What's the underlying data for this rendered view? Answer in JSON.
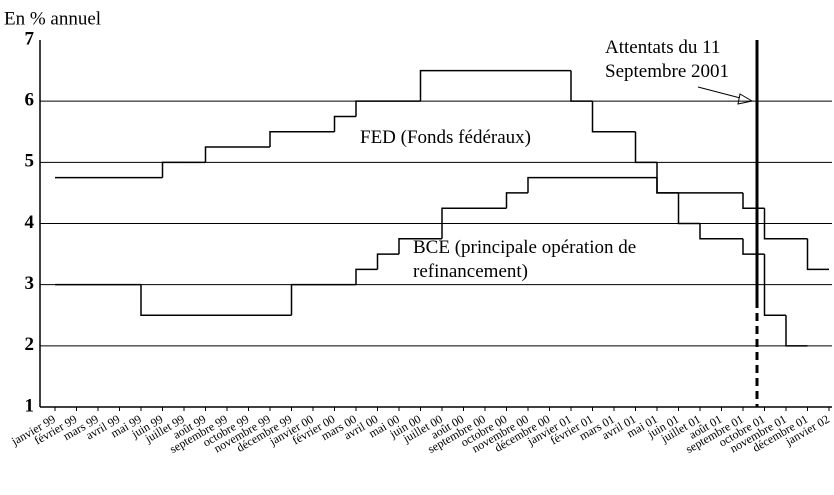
{
  "chart_data": {
    "type": "step",
    "y_axis_label": "En % annuel",
    "categories": [
      "janvier 99",
      "février 99",
      "mars 99",
      "avril 99",
      "mai 99",
      "juin 99",
      "juillet 99",
      "août 99",
      "septembre 99",
      "octobre 99",
      "novembre 99",
      "décembre 99",
      "janvier 00",
      "février 00",
      "mars 00",
      "avril 00",
      "mai 00",
      "juin 00",
      "juillet 00",
      "août 00",
      "septembre 00",
      "octobre 00",
      "novembre 00",
      "décembre 00",
      "janvier 01",
      "février 01",
      "mars 01",
      "avril 01",
      "mai 01",
      "juin 01",
      "juillet 01",
      "août 01",
      "septembre 01",
      "octobre 01",
      "novembre 01",
      "décembre 01",
      "janvier 02"
    ],
    "series": [
      {
        "name": "FED (Fonds fédéraux)",
        "color": "#000000",
        "values": [
          4.75,
          4.75,
          4.75,
          4.75,
          4.75,
          5.0,
          5.0,
          5.25,
          5.25,
          5.25,
          5.5,
          5.5,
          5.5,
          5.75,
          6.0,
          6.0,
          6.0,
          6.5,
          6.5,
          6.5,
          6.5,
          6.5,
          6.5,
          6.5,
          6.0,
          5.5,
          5.5,
          5.0,
          4.5,
          4.0,
          3.75,
          3.75,
          3.5,
          2.5,
          2.0,
          null,
          null
        ]
      },
      {
        "name": "BCE (principale opération de refinancement)",
        "color": "#000000",
        "values": [
          3.0,
          3.0,
          3.0,
          3.0,
          2.5,
          2.5,
          2.5,
          2.5,
          2.5,
          2.5,
          2.5,
          3.0,
          3.0,
          3.0,
          3.25,
          3.5,
          3.75,
          3.75,
          4.25,
          4.25,
          4.25,
          4.5,
          4.75,
          4.75,
          4.75,
          4.75,
          4.75,
          4.75,
          4.5,
          4.5,
          4.5,
          4.5,
          4.25,
          3.75,
          3.75,
          3.25,
          null
        ]
      }
    ],
    "annotation": "Attentats du 11 Septembre 2001",
    "ylim": [
      1,
      7
    ],
    "yticks": [
      1,
      2,
      3,
      4,
      5,
      6,
      7
    ],
    "grid": true
  }
}
